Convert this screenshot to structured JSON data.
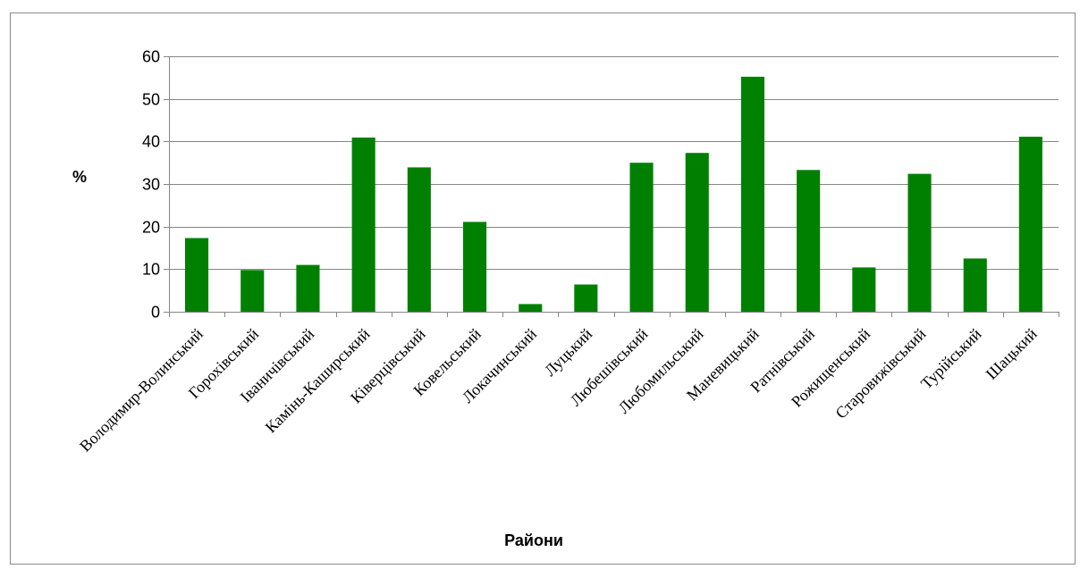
{
  "chart_data": {
    "type": "bar",
    "title": "",
    "xlabel": "Райони",
    "ylabel": "%",
    "ylim": [
      0,
      60
    ],
    "yticks": [
      0,
      10,
      20,
      30,
      40,
      50,
      60
    ],
    "grid": true,
    "legend": "none",
    "bar_color": "#008000",
    "categories": [
      "Володимир-Волинський",
      "Горохівський",
      "Іваничівський",
      "Камінь-Каширський",
      "Ківерцівський",
      "Ковельський",
      "Локачинський",
      "Луцький",
      "Любешівський",
      "Любомильський",
      "Маневицький",
      "Ратнівський",
      "Рожищенський",
      "Старовижівський",
      "Турійський",
      "Шацький"
    ],
    "values": [
      17.3,
      9.8,
      11.0,
      40.9,
      33.9,
      21.1,
      1.8,
      6.4,
      35.0,
      37.3,
      55.2,
      33.3,
      10.4,
      32.4,
      12.5,
      41.1
    ]
  }
}
